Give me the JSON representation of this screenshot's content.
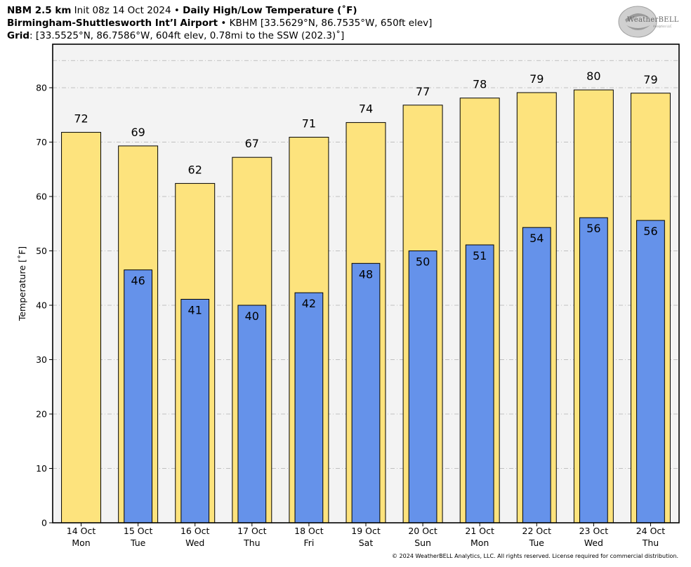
{
  "header": {
    "line1_bold": "NBM 2.5 km",
    "line1_text": " Init 08z 14 Oct 2024 • ",
    "line1_bold2": "Daily High/Low Temperature (˚F)",
    "line2_bold": "Birmingham-Shuttlesworth Int’l Airport",
    "line2_text": " • KBHM [33.5629°N, 86.7535°W, 650ft elev]",
    "line3_bold": "Grid",
    "line3_text": ": [33.5525°N, 86.7586°W, 604ft elev, 0.78mi to the SSW (202.3)˚]"
  },
  "logo": {
    "text": "WeatherBELL",
    "sub": "Analytics LLC"
  },
  "footer": "© 2024 WeatherBELL Analytics, LLC. All rights reserved. License required for commercial distribution.",
  "chart_data": {
    "type": "bar",
    "ylabel": "Temperature [˚F]",
    "ylim": [
      0,
      88
    ],
    "yticks": [
      0,
      10,
      20,
      30,
      40,
      50,
      60,
      70,
      80
    ],
    "grid": true,
    "categories": [
      {
        "date": "14 Oct",
        "day": "Mon"
      },
      {
        "date": "15 Oct",
        "day": "Tue"
      },
      {
        "date": "16 Oct",
        "day": "Wed"
      },
      {
        "date": "17 Oct",
        "day": "Thu"
      },
      {
        "date": "18 Oct",
        "day": "Fri"
      },
      {
        "date": "19 Oct",
        "day": "Sat"
      },
      {
        "date": "20 Oct",
        "day": "Sun"
      },
      {
        "date": "21 Oct",
        "day": "Mon"
      },
      {
        "date": "22 Oct",
        "day": "Tue"
      },
      {
        "date": "23 Oct",
        "day": "Wed"
      },
      {
        "date": "24 Oct",
        "day": "Thu"
      }
    ],
    "series": [
      {
        "kind": "high",
        "values": [
          71.8,
          69.3,
          62.4,
          67.2,
          70.9,
          73.6,
          76.8,
          78.1,
          79.1,
          79.6,
          79.0
        ],
        "labels": [
          "72",
          "69",
          "62",
          "67",
          "71",
          "74",
          "77",
          "78",
          "79",
          "80",
          "79"
        ],
        "color": "#fde37d"
      },
      {
        "kind": "low",
        "values": [
          null,
          46.5,
          41.1,
          40.0,
          42.3,
          47.7,
          50.0,
          51.1,
          54.3,
          56.1,
          55.6
        ],
        "labels": [
          "",
          "46",
          "41",
          "40",
          "42",
          "48",
          "50",
          "51",
          "54",
          "56",
          "56"
        ],
        "color": "#6592ea"
      }
    ],
    "colors": {
      "background": "#f3f3f3",
      "grid": "#b0b0b0",
      "edge": "#000000"
    }
  }
}
